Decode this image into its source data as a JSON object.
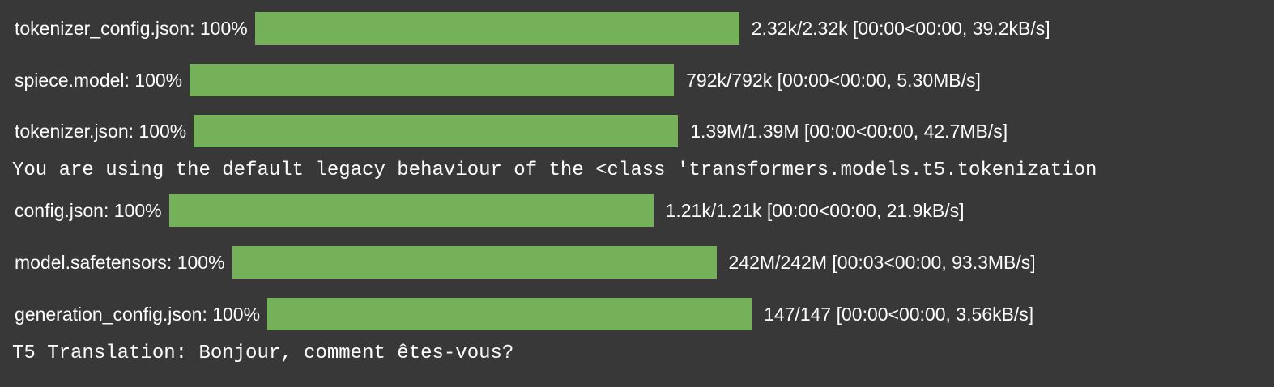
{
  "theme": {
    "background": "#383838",
    "bar_fill": "#75b158",
    "text": "#ffffff"
  },
  "downloads": [
    {
      "label": "tokenizer_config.json: 100%",
      "progress": 1.0,
      "stats": "2.32k/2.32k [00:00<00:00, 39.2kB/s]"
    },
    {
      "label": "spiece.model: 100%",
      "progress": 1.0,
      "stats": "792k/792k [00:00<00:00, 5.30MB/s]"
    },
    {
      "label": "tokenizer.json: 100%",
      "progress": 1.0,
      "stats": "1.39M/1.39M [00:00<00:00, 42.7MB/s]"
    },
    {
      "label": "config.json: 100%",
      "progress": 1.0,
      "stats": "1.21k/1.21k [00:00<00:00, 21.9kB/s]"
    },
    {
      "label": "model.safetensors: 100%",
      "progress": 1.0,
      "stats": "242M/242M [00:03<00:00, 93.3MB/s]"
    },
    {
      "label": "generation_config.json: 100%",
      "progress": 1.0,
      "stats": "147/147 [00:00<00:00, 3.56kB/s]"
    }
  ],
  "output": {
    "warning": "You are using the default legacy behaviour of the <class 'transformers.models.t5.tokenization",
    "translation": "T5 Translation: Bonjour, comment êtes-vous?"
  }
}
